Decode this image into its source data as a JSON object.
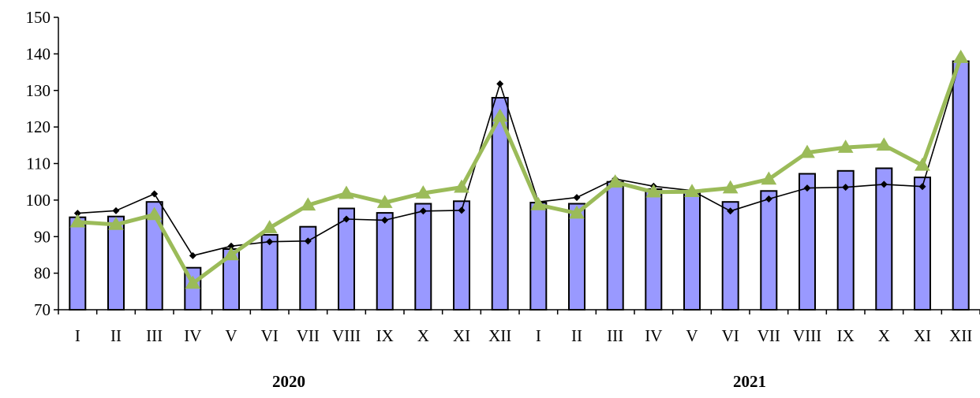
{
  "chart_data": {
    "type": "bar",
    "categories": [
      "I",
      "II",
      "III",
      "IV",
      "V",
      "VI",
      "VII",
      "VIII",
      "IX",
      "X",
      "XI",
      "XII",
      "I",
      "II",
      "III",
      "IV",
      "V",
      "VI",
      "VII",
      "VIII",
      "IX",
      "X",
      "XI",
      "XII"
    ],
    "groups": [
      "2020",
      "2021"
    ],
    "ylim": [
      70,
      150
    ],
    "yticks": [
      70,
      80,
      90,
      100,
      110,
      120,
      130,
      140,
      150
    ],
    "grid": false,
    "series": [
      {
        "type": "bar",
        "color": "#9999ff",
        "values": [
          95.3,
          95.5,
          99.5,
          81.5,
          86.6,
          90.5,
          92.7,
          97.7,
          96.5,
          99.0,
          99.7,
          128.0,
          99.3,
          99.0,
          105.0,
          103.0,
          102.4,
          99.5,
          102.5,
          107.2,
          108.0,
          108.7,
          106.2,
          138.0
        ]
      },
      {
        "type": "line",
        "color": "#000000",
        "marker": "diamond",
        "values": [
          96.4,
          97.1,
          101.7,
          84.8,
          87.4,
          88.6,
          88.8,
          94.8,
          94.5,
          97.0,
          97.2,
          131.8,
          99.5,
          100.7,
          105.8,
          103.8,
          102.6,
          97.0,
          100.3,
          103.3,
          103.5,
          104.3,
          103.7,
          138.5
        ]
      },
      {
        "type": "line",
        "color": "#9bbb59",
        "marker": "triangle",
        "values": [
          94.0,
          93.3,
          96.0,
          77.2,
          85.0,
          92.4,
          98.6,
          101.8,
          99.3,
          101.9,
          103.5,
          122.9,
          98.7,
          96.4,
          104.9,
          102.2,
          102.3,
          103.3,
          105.7,
          113.0,
          114.4,
          115.0,
          109.5,
          139.0
        ]
      }
    ]
  }
}
